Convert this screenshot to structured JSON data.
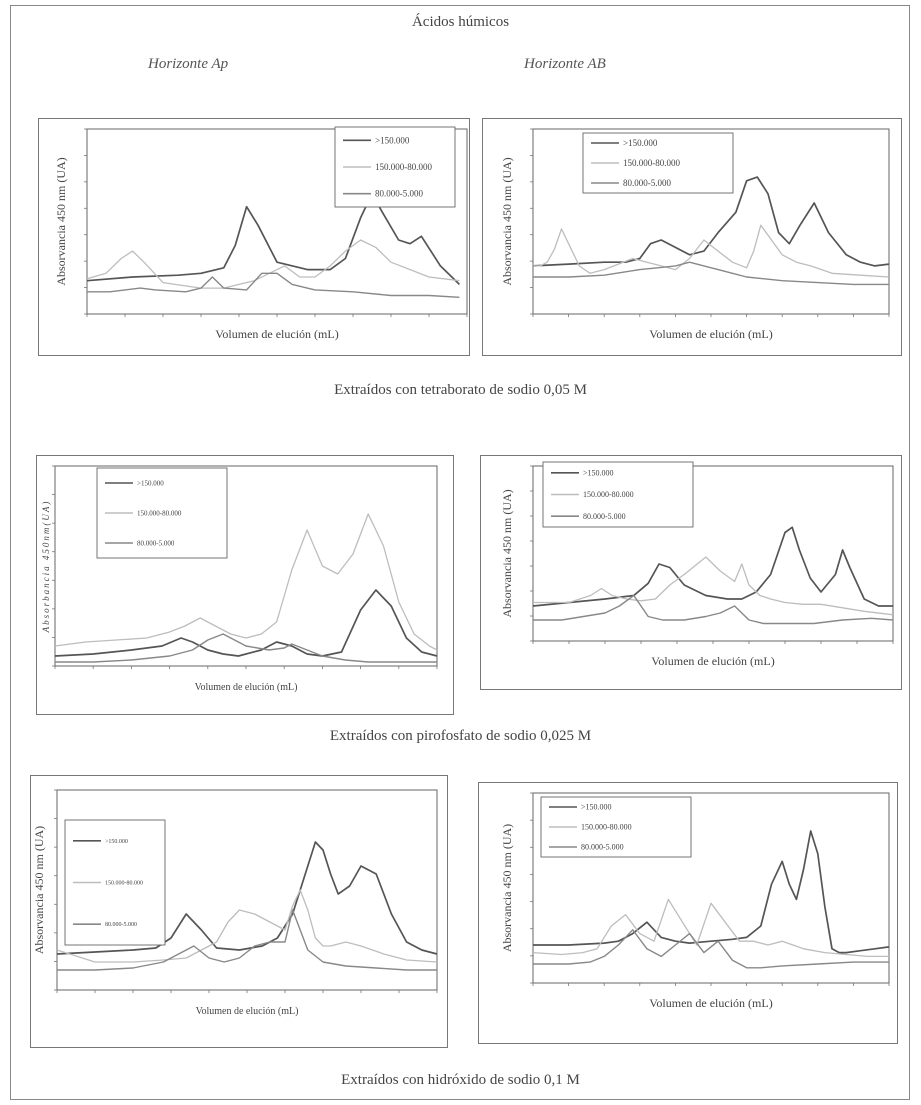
{
  "figure": {
    "title": "Ácidos húmicos",
    "col_left": "Horizonte  Ap",
    "col_right": "Horizonte AB",
    "caption1": "Extraídos con tetraborato de sodio 0,05 M",
    "caption2": "Extraídos con pirofosfato de sodio  0,025 M",
    "caption3": "Extraídos con hidróxido de sodio 0,1 M"
  },
  "colors": {
    "s1": "#555555",
    "s2": "#bdbdbd",
    "s3": "#888888"
  },
  "chart_data": [
    {
      "id": "ap-tetraborato",
      "type": "line",
      "xlabel": "Volumen de elución (mL)",
      "ylabel": "Absorvancia 450 nm (UA)",
      "xlim": [
        0,
        100
      ],
      "ylim": [
        0,
        100
      ],
      "legend": "top-right",
      "legend_labels": [
        ">150.000",
        "150.000-80.000",
        "80.000-5.000"
      ],
      "series": [
        {
          "name": ">150.000",
          "x": [
            0,
            12,
            24,
            30,
            36,
            39,
            42,
            45,
            50,
            58,
            64,
            68,
            72,
            75,
            78,
            82,
            85,
            88,
            93,
            98
          ],
          "y": [
            18,
            20,
            21,
            22,
            25,
            37,
            58,
            48,
            28,
            24,
            24,
            30,
            52,
            65,
            54,
            40,
            38,
            42,
            26,
            16
          ]
        },
        {
          "name": "150.000-80.000",
          "x": [
            0,
            5,
            9,
            12,
            15,
            20,
            30,
            36,
            40,
            44,
            48,
            52,
            56,
            60,
            64,
            68,
            72,
            76,
            80,
            90,
            98
          ],
          "y": [
            19,
            22,
            30,
            34,
            28,
            17,
            14,
            14,
            16,
            18,
            22,
            26,
            20,
            20,
            26,
            34,
            40,
            36,
            28,
            20,
            18
          ]
        },
        {
          "name": "80.000-5.000",
          "x": [
            0,
            6,
            10,
            14,
            18,
            26,
            30,
            33,
            36,
            42,
            46,
            50,
            54,
            60,
            70,
            80,
            90,
            98
          ],
          "y": [
            12,
            12,
            13,
            14,
            13,
            12,
            14,
            20,
            14,
            13,
            22,
            22,
            16,
            13,
            12,
            10,
            10,
            9
          ]
        }
      ]
    },
    {
      "id": "ab-tetraborato",
      "type": "line",
      "xlabel": "Volumen de elución (mL)",
      "ylabel": "Absorvancia 450 nm (UA)",
      "xlim": [
        0,
        100
      ],
      "ylim": [
        0,
        100
      ],
      "legend": "top-left",
      "legend_labels": [
        ">150.000",
        "150.000-80.000",
        "80.000-5.000"
      ],
      "series": [
        {
          "name": ">150.000",
          "x": [
            0,
            10,
            20,
            26,
            30,
            33,
            36,
            40,
            44,
            48,
            52,
            57,
            60,
            63,
            66,
            69,
            72,
            75,
            79,
            83,
            88,
            92,
            96,
            100
          ],
          "y": [
            26,
            27,
            28,
            28,
            30,
            38,
            40,
            36,
            32,
            34,
            44,
            55,
            72,
            74,
            65,
            44,
            38,
            48,
            60,
            44,
            32,
            28,
            26,
            27
          ]
        },
        {
          "name": "150.000-80.000",
          "x": [
            0,
            2,
            4,
            6,
            8,
            10,
            13,
            16,
            20,
            24,
            28,
            32,
            36,
            40,
            44,
            48,
            52,
            56,
            60,
            62,
            64,
            67,
            70,
            74,
            78,
            84,
            92,
            100
          ],
          "y": [
            26,
            26,
            28,
            35,
            46,
            38,
            26,
            22,
            24,
            27,
            30,
            28,
            26,
            24,
            30,
            40,
            34,
            28,
            25,
            34,
            48,
            40,
            32,
            28,
            26,
            22,
            21,
            20
          ]
        },
        {
          "name": "80.000-5.000",
          "x": [
            0,
            10,
            20,
            30,
            35,
            40,
            44,
            48,
            52,
            56,
            60,
            70,
            80,
            90,
            100
          ],
          "y": [
            20,
            20,
            21,
            24,
            25,
            26,
            28,
            26,
            24,
            22,
            20,
            18,
            17,
            16,
            16
          ]
        }
      ]
    },
    {
      "id": "ap-pirofosfato",
      "type": "line",
      "xlabel": "Volumen de elución (mL)",
      "ylabel": "Absorbancia 450nm(UA)",
      "xlim": [
        0,
        100
      ],
      "ylim": [
        0,
        100
      ],
      "legend": "top-left",
      "legend_labels": [
        ">150.000",
        "150.000-80.000",
        "80.000-5.000"
      ],
      "series": [
        {
          "name": ">150.000",
          "x": [
            0,
            10,
            20,
            28,
            33,
            36,
            40,
            44,
            48,
            54,
            58,
            62,
            66,
            70,
            75,
            80,
            84,
            88,
            92,
            96,
            100
          ],
          "y": [
            5,
            6,
            8,
            10,
            14,
            12,
            8,
            6,
            5,
            8,
            12,
            10,
            6,
            5,
            7,
            28,
            38,
            30,
            14,
            7,
            5
          ]
        },
        {
          "name": "150.000-80.000",
          "x": [
            0,
            8,
            16,
            24,
            30,
            34,
            38,
            42,
            46,
            50,
            54,
            58,
            62,
            66,
            70,
            74,
            78,
            82,
            86,
            90,
            94,
            98,
            100
          ],
          "y": [
            10,
            12,
            13,
            14,
            17,
            20,
            24,
            20,
            16,
            14,
            16,
            22,
            48,
            68,
            50,
            46,
            56,
            76,
            60,
            32,
            16,
            10,
            8
          ]
        },
        {
          "name": "80.000-5.000",
          "x": [
            0,
            10,
            20,
            30,
            36,
            40,
            44,
            50,
            56,
            60,
            62,
            66,
            70,
            76,
            82,
            90,
            100
          ],
          "y": [
            2,
            2,
            3,
            5,
            8,
            13,
            16,
            10,
            8,
            9,
            11,
            8,
            5,
            3,
            2,
            2,
            2
          ]
        }
      ]
    },
    {
      "id": "ab-pirofosfato",
      "type": "line",
      "xlabel": "Volumen de elución (mL)",
      "ylabel": "Absorvancia 450 nm (UA)",
      "xlim": [
        0,
        100
      ],
      "ylim": [
        0,
        100
      ],
      "legend": "top-left",
      "legend_labels": [
        ">150.000",
        "150.000-80.000",
        "80.000-5.000"
      ],
      "series": [
        {
          "name": ">150.000",
          "x": [
            0,
            10,
            20,
            28,
            32,
            35,
            38,
            42,
            48,
            54,
            58,
            62,
            66,
            68,
            70,
            72,
            74,
            77,
            80,
            84,
            86,
            88,
            92,
            96,
            100
          ],
          "y": [
            20,
            22,
            24,
            26,
            33,
            44,
            42,
            32,
            26,
            24,
            24,
            28,
            38,
            50,
            62,
            65,
            52,
            36,
            28,
            38,
            52,
            42,
            24,
            20,
            20
          ]
        },
        {
          "name": "150.000-80.000",
          "x": [
            0,
            6,
            10,
            13,
            16,
            19,
            22,
            26,
            30,
            34,
            38,
            42,
            48,
            52,
            56,
            58,
            60,
            63,
            66,
            70,
            75,
            80,
            86,
            92,
            100
          ],
          "y": [
            22,
            22,
            22,
            24,
            26,
            30,
            26,
            24,
            23,
            24,
            32,
            38,
            48,
            40,
            34,
            44,
            32,
            26,
            24,
            22,
            21,
            21,
            19,
            17,
            15
          ]
        },
        {
          "name": "80.000-5.000",
          "x": [
            0,
            8,
            14,
            20,
            24,
            28,
            32,
            36,
            42,
            48,
            52,
            56,
            60,
            64,
            70,
            78,
            86,
            94,
            100
          ],
          "y": [
            12,
            12,
            14,
            16,
            20,
            26,
            14,
            12,
            12,
            14,
            16,
            20,
            12,
            10,
            10,
            10,
            12,
            13,
            12
          ]
        }
      ]
    },
    {
      "id": "ap-hidroxido",
      "type": "line",
      "xlabel": "Volumen de elución (mL)",
      "ylabel": "Absorvancia 450 nm (UA)",
      "xlim": [
        0,
        100
      ],
      "ylim": [
        0,
        100
      ],
      "legend": "top-left",
      "legend_labels": [
        ">150.000",
        "150.000-80.000",
        "80.000-5.000"
      ],
      "series": [
        {
          "name": ">150.000",
          "x": [
            0,
            10,
            20,
            26,
            30,
            34,
            38,
            42,
            48,
            54,
            58,
            62,
            66,
            68,
            70,
            72,
            74,
            77,
            80,
            84,
            88,
            92,
            96,
            100
          ],
          "y": [
            18,
            19,
            20,
            21,
            26,
            38,
            30,
            21,
            20,
            22,
            26,
            38,
            62,
            74,
            70,
            58,
            48,
            52,
            62,
            58,
            38,
            24,
            20,
            18
          ]
        },
        {
          "name": "150.000-80.000",
          "x": [
            0,
            10,
            20,
            28,
            34,
            38,
            42,
            45,
            48,
            52,
            56,
            60,
            62,
            64,
            66,
            68,
            70,
            72,
            76,
            80,
            86,
            92,
            100
          ],
          "y": [
            20,
            14,
            14,
            15,
            16,
            20,
            24,
            34,
            40,
            38,
            34,
            30,
            42,
            50,
            40,
            26,
            22,
            22,
            24,
            22,
            18,
            15,
            14
          ]
        },
        {
          "name": "80.000-5.000",
          "x": [
            0,
            10,
            20,
            28,
            32,
            36,
            40,
            44,
            48,
            52,
            56,
            60,
            62,
            64,
            66,
            70,
            76,
            84,
            92,
            100
          ],
          "y": [
            10,
            10,
            11,
            14,
            18,
            22,
            16,
            14,
            16,
            22,
            24,
            24,
            40,
            30,
            20,
            14,
            12,
            11,
            10,
            10
          ]
        }
      ]
    },
    {
      "id": "ab-hidroxido",
      "type": "line",
      "xlabel": "Volumen de elución (mL)",
      "ylabel": "Absorvancia 450 nm (UA)",
      "xlim": [
        0,
        100
      ],
      "ylim": [
        0,
        100
      ],
      "legend": "top-left",
      "legend_labels": [
        ">150.000",
        "150.000-80.000",
        "80.000-5.000"
      ],
      "series": [
        {
          "name": ">150.000",
          "x": [
            0,
            10,
            20,
            24,
            28,
            32,
            36,
            40,
            44,
            50,
            56,
            60,
            64,
            67,
            70,
            72,
            74,
            76,
            78,
            80,
            82,
            84,
            86,
            88,
            92,
            96,
            100
          ],
          "y": [
            20,
            20,
            21,
            22,
            26,
            32,
            24,
            22,
            21,
            22,
            23,
            24,
            30,
            52,
            64,
            52,
            44,
            60,
            80,
            68,
            40,
            18,
            16,
            16,
            17,
            18,
            19
          ]
        },
        {
          "name": "150.000-80.000",
          "x": [
            0,
            8,
            14,
            18,
            22,
            26,
            30,
            34,
            38,
            42,
            46,
            50,
            54,
            58,
            62,
            66,
            70,
            76,
            82,
            88,
            94,
            100
          ],
          "y": [
            16,
            15,
            16,
            18,
            30,
            36,
            26,
            22,
            44,
            32,
            20,
            42,
            32,
            22,
            22,
            20,
            22,
            18,
            16,
            15,
            14,
            14
          ]
        },
        {
          "name": "80.000-5.000",
          "x": [
            0,
            10,
            16,
            20,
            24,
            28,
            32,
            36,
            40,
            44,
            48,
            52,
            56,
            60,
            64,
            70,
            80,
            90,
            100
          ],
          "y": [
            10,
            10,
            11,
            14,
            20,
            28,
            18,
            14,
            20,
            26,
            16,
            22,
            12,
            8,
            8,
            9,
            10,
            11,
            11
          ]
        }
      ]
    }
  ]
}
